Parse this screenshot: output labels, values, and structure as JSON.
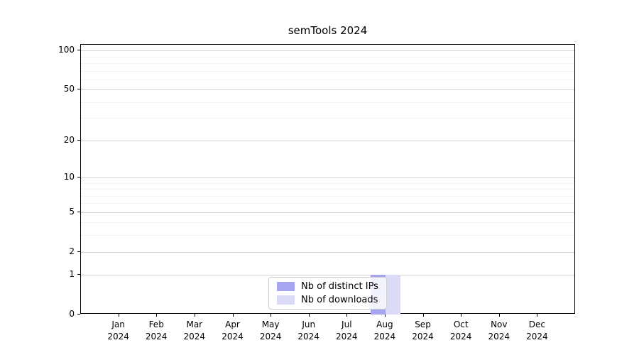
{
  "chart_data": {
    "type": "bar",
    "title": "semTools 2024",
    "x": {
      "months": [
        "Jan",
        "Feb",
        "Mar",
        "Apr",
        "May",
        "Jun",
        "Jul",
        "Aug",
        "Sep",
        "Oct",
        "Nov",
        "Dec"
      ],
      "year": "2024"
    },
    "y_axis": {
      "scale": "log1p",
      "tick_values": [
        100,
        50,
        20,
        10,
        5,
        2,
        1,
        0
      ],
      "tick_labels": [
        "100",
        "50",
        "20",
        "10",
        "5",
        "2",
        "1",
        "0"
      ],
      "minor_gridline_values": [
        90,
        80,
        70,
        60,
        40,
        30,
        9,
        8,
        7,
        6,
        4,
        3
      ],
      "ylim": [
        0,
        111
      ],
      "grid": true
    },
    "series": [
      {
        "name": "Nb of distinct IPs",
        "color": "#a5a5f0",
        "values": [
          0,
          0,
          0,
          0,
          0,
          0,
          0,
          1,
          0,
          0,
          0,
          0
        ]
      },
      {
        "name": "Nb of downloads",
        "color": "#dbdbf7",
        "values": [
          0,
          0,
          0,
          0,
          0,
          0,
          0,
          1,
          0,
          0,
          0,
          0
        ]
      }
    ],
    "legend": {
      "position": "lower-center",
      "labels": [
        "Nb of distinct IPs",
        "Nb of downloads"
      ]
    }
  }
}
